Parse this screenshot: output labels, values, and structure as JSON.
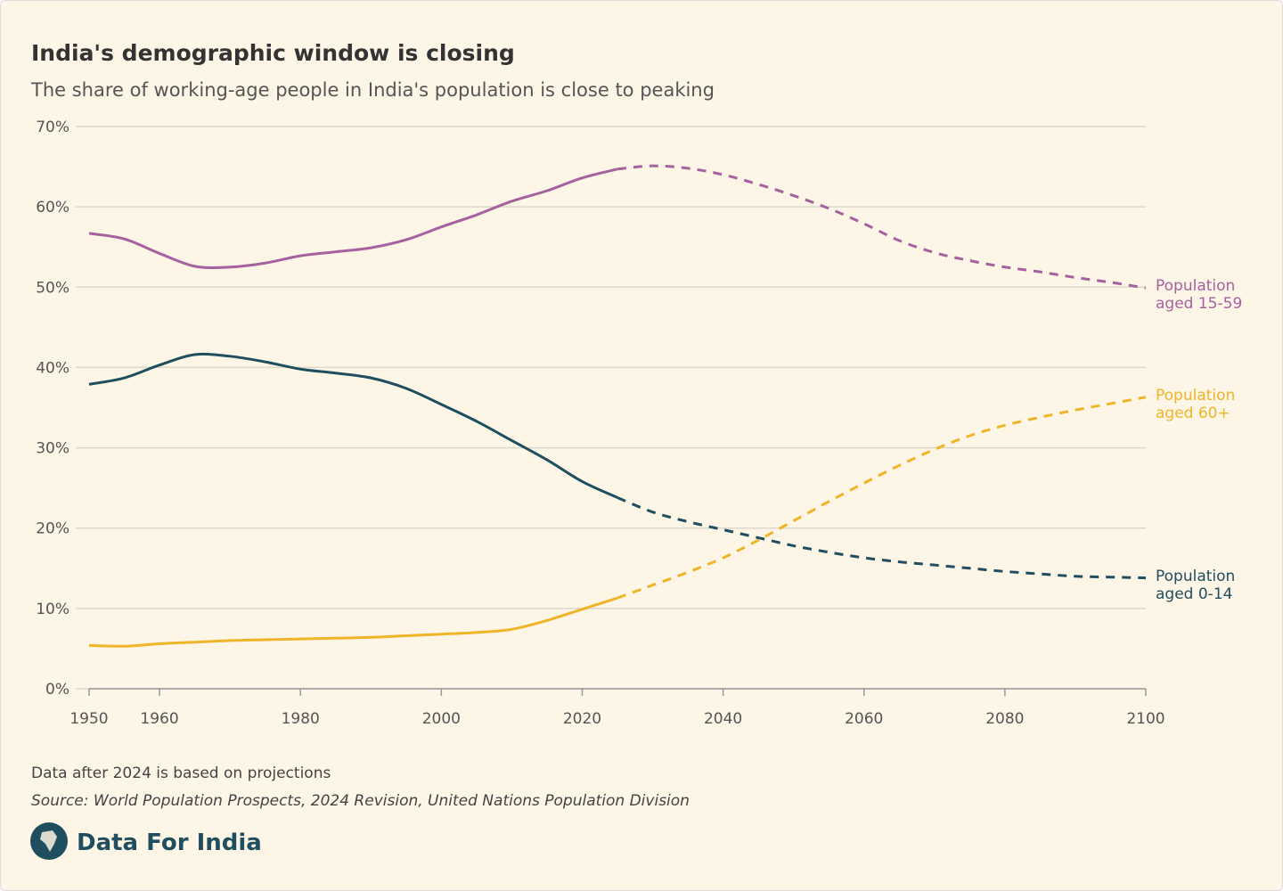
{
  "chart_data": {
    "type": "line",
    "title": "India's demographic window is closing",
    "subtitle": "The share of working-age people in India's population is close to peaking",
    "note": "Data after 2024 is based on projections",
    "source": "Source: World Population Prospects, 2024 Revision, United Nations Population Division",
    "brand": "Data For India",
    "projection_start": 2024,
    "x": [
      1950,
      1955,
      1960,
      1965,
      1970,
      1975,
      1980,
      1985,
      1990,
      1995,
      2000,
      2005,
      2010,
      2015,
      2020,
      2025,
      2030,
      2035,
      2040,
      2045,
      2050,
      2055,
      2060,
      2065,
      2070,
      2075,
      2080,
      2085,
      2090,
      2095,
      2100
    ],
    "series": [
      {
        "name": "Population aged 15-59",
        "color": "#a5629f",
        "values": [
          56.7,
          56.0,
          54.2,
          52.6,
          52.5,
          53.0,
          53.9,
          54.4,
          54.9,
          55.9,
          57.5,
          59.0,
          60.7,
          62.0,
          63.6,
          64.7,
          65.1,
          64.8,
          64.0,
          62.8,
          61.4,
          59.8,
          57.9,
          55.8,
          54.3,
          53.3,
          52.5,
          51.9,
          51.2,
          50.6,
          49.9
        ]
      },
      {
        "name": "Population aged 60+",
        "color": "#f0b429",
        "values": [
          5.4,
          5.3,
          5.6,
          5.8,
          6.0,
          6.1,
          6.2,
          6.3,
          6.4,
          6.6,
          6.8,
          7.0,
          7.4,
          8.5,
          9.9,
          11.3,
          12.9,
          14.5,
          16.3,
          18.5,
          20.9,
          23.3,
          25.6,
          27.8,
          29.8,
          31.5,
          32.8,
          33.8,
          34.7,
          35.5,
          36.3
        ]
      },
      {
        "name": "Population aged 0-14",
        "color": "#1f4e5f",
        "values": [
          37.9,
          38.7,
          40.3,
          41.6,
          41.4,
          40.7,
          39.8,
          39.3,
          38.7,
          37.4,
          35.4,
          33.3,
          30.9,
          28.5,
          25.8,
          23.8,
          22.0,
          20.8,
          19.8,
          18.8,
          17.8,
          17.0,
          16.3,
          15.8,
          15.4,
          15.0,
          14.6,
          14.3,
          14.0,
          13.9,
          13.8
        ]
      }
    ],
    "xlim": [
      1950,
      2100
    ],
    "xticks": [
      1950,
      1960,
      1980,
      2000,
      2020,
      2040,
      2060,
      2080,
      2100
    ],
    "ylim": [
      0,
      70
    ],
    "yticks": [
      {
        "value": 0,
        "label": "0%"
      },
      {
        "value": 10,
        "label": "10%"
      },
      {
        "value": 20,
        "label": "20%"
      },
      {
        "value": 30,
        "label": "30%"
      },
      {
        "value": 40,
        "label": "40%"
      },
      {
        "value": 50,
        "label": "50%"
      },
      {
        "value": 60,
        "label": "60%"
      },
      {
        "value": 70,
        "label": "70%"
      }
    ],
    "grid": true
  }
}
